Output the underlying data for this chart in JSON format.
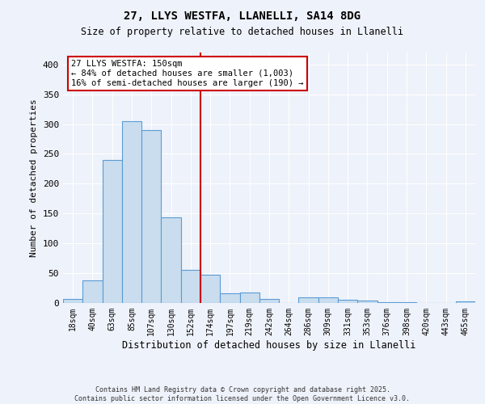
{
  "title1": "27, LLYS WESTFA, LLANELLI, SA14 8DG",
  "title2": "Size of property relative to detached houses in Llanelli",
  "xlabel": "Distribution of detached houses by size in Llanelli",
  "ylabel": "Number of detached properties",
  "footnote": "Contains HM Land Registry data © Crown copyright and database right 2025.\nContains public sector information licensed under the Open Government Licence v3.0.",
  "bin_labels": [
    "18sqm",
    "40sqm",
    "63sqm",
    "85sqm",
    "107sqm",
    "130sqm",
    "152sqm",
    "174sqm",
    "197sqm",
    "219sqm",
    "242sqm",
    "264sqm",
    "286sqm",
    "309sqm",
    "331sqm",
    "353sqm",
    "376sqm",
    "398sqm",
    "420sqm",
    "443sqm",
    "465sqm"
  ],
  "bar_values": [
    7,
    38,
    240,
    305,
    290,
    144,
    55,
    47,
    16,
    18,
    7,
    0,
    10,
    10,
    5,
    4,
    2,
    2,
    0,
    0,
    3
  ],
  "bar_color": "#c9ddef",
  "bar_edge_color": "#5b9bd5",
  "vline_color": "#cc0000",
  "annotation_text": "27 LLYS WESTFA: 150sqm\n← 84% of detached houses are smaller (1,003)\n16% of semi-detached houses are larger (190) →",
  "annotation_box_color": "#ffffff",
  "annotation_box_edge": "#cc0000",
  "ylim": [
    0,
    420
  ],
  "yticks": [
    0,
    50,
    100,
    150,
    200,
    250,
    300,
    350,
    400
  ],
  "bg_color": "#eef2fa",
  "plot_bg_color": "#eef2fa",
  "grid_color": "#ffffff"
}
